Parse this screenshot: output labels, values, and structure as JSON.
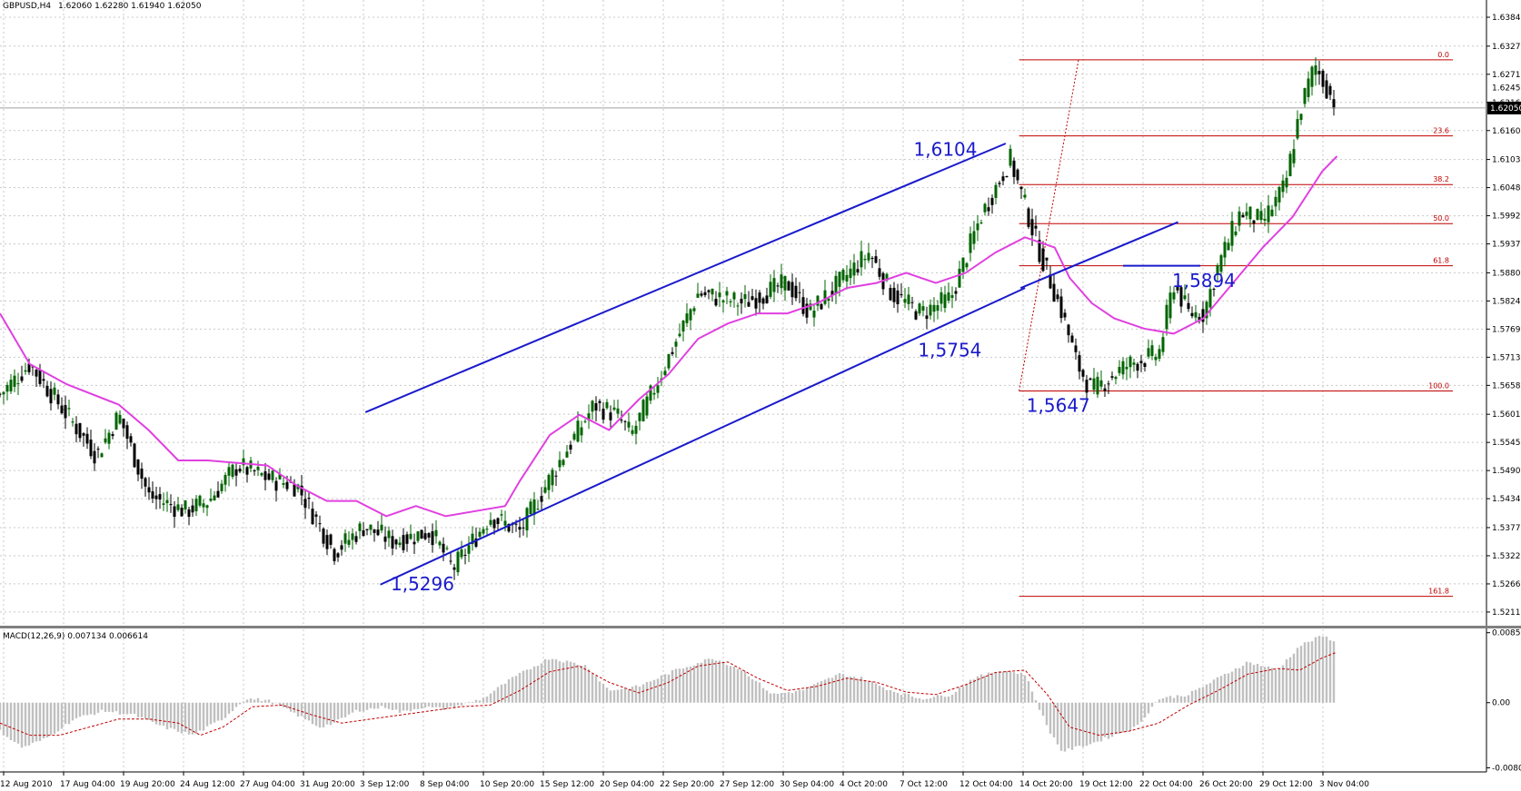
{
  "header": {
    "symbol": "GBPUSD,H4",
    "ohlc": "1.62060 1.62280 1.61940 1.62050"
  },
  "macd_header": "MACD(12,26,9) 0.007134 0.006614",
  "colors": {
    "up": "#006400",
    "down": "#000000",
    "ma": "#e040e0",
    "channel": "#1a1acc",
    "fib": "#c00000",
    "grid": "#c8c8c8",
    "hist": "#c0c0c0",
    "signal": "#c00000"
  },
  "chart_data": [
    {
      "type": "candlestick",
      "title": "GBPUSD,H4",
      "y_ticks": [
        "1.63840",
        "1.63270",
        "1.62715",
        "1.62160",
        "1.61605",
        "1.61035",
        "1.60480",
        "1.59925",
        "1.59370",
        "1.58800",
        "1.58245",
        "1.57690",
        "1.57135",
        "1.56580",
        "1.56010",
        "1.55455",
        "1.54900",
        "1.54345",
        "1.53775",
        "1.53220",
        "1.52665",
        "1.52110"
      ],
      "ylim": [
        1.5184,
        1.6418
      ],
      "x_ticks": [
        "12 Aug 2010",
        "17 Aug 04:00",
        "19 Aug 20:00",
        "24 Aug 12:00",
        "27 Aug 04:00",
        "31 Aug 20:00",
        "3 Sep 12:00",
        "8 Sep 04:00",
        "10 Sep 20:00",
        "15 Sep 12:00",
        "20 Sep 04:00",
        "22 Sep 20:00",
        "27 Sep 12:00",
        "30 Sep 04:00",
        "4 Oct 20:00",
        "7 Oct 12:00",
        "12 Oct 04:00",
        "14 Oct 20:00",
        "19 Oct 12:00",
        "22 Oct 04:00",
        "26 Oct 20:00",
        "29 Oct 12:00",
        "3 Nov 04:00"
      ],
      "current_price": "1.62050",
      "extra_tick": "1.62450",
      "price_path": [
        [
          0,
          1.564
        ],
        [
          0.02,
          1.57
        ],
        [
          0.045,
          1.56
        ],
        [
          0.065,
          1.552
        ],
        [
          0.08,
          1.56
        ],
        [
          0.1,
          1.544
        ],
        [
          0.125,
          1.541
        ],
        [
          0.14,
          1.543
        ],
        [
          0.16,
          1.55
        ],
        [
          0.18,
          1.5475
        ],
        [
          0.2,
          1.546
        ],
        [
          0.225,
          1.533
        ],
        [
          0.245,
          1.538
        ],
        [
          0.265,
          1.535
        ],
        [
          0.29,
          1.537
        ],
        [
          0.305,
          1.5296
        ],
        [
          0.33,
          1.54
        ],
        [
          0.35,
          1.537
        ],
        [
          0.375,
          1.55
        ],
        [
          0.4,
          1.562
        ],
        [
          0.415,
          1.56
        ],
        [
          0.425,
          1.556
        ],
        [
          0.44,
          1.565
        ],
        [
          0.47,
          1.584
        ],
        [
          0.5,
          1.582
        ],
        [
          0.53,
          1.586
        ],
        [
          0.545,
          1.58
        ],
        [
          0.565,
          1.586
        ],
        [
          0.585,
          1.592
        ],
        [
          0.6,
          1.584
        ],
        [
          0.62,
          1.58
        ],
        [
          0.64,
          1.583
        ],
        [
          0.66,
          1.599
        ],
        [
          0.68,
          1.6104
        ],
        [
          0.7,
          1.592
        ],
        [
          0.715,
          1.58
        ],
        [
          0.725,
          1.57
        ],
        [
          0.735,
          1.5647
        ],
        [
          0.75,
          1.568
        ],
        [
          0.76,
          1.57
        ],
        [
          0.78,
          1.572
        ],
        [
          0.79,
          1.586
        ],
        [
          0.8,
          1.58
        ],
        [
          0.81,
          1.58
        ],
        [
          0.82,
          1.5894
        ],
        [
          0.835,
          1.6
        ],
        [
          0.85,
          1.598
        ],
        [
          0.865,
          1.605
        ],
        [
          0.875,
          1.62
        ],
        [
          0.885,
          1.629
        ],
        [
          0.9,
          1.6205
        ]
      ],
      "ma_path": [
        [
          0,
          1.58
        ],
        [
          0.02,
          1.57
        ],
        [
          0.045,
          1.566
        ],
        [
          0.08,
          1.562
        ],
        [
          0.1,
          1.557
        ],
        [
          0.12,
          1.551
        ],
        [
          0.14,
          1.551
        ],
        [
          0.16,
          1.5505
        ],
        [
          0.18,
          1.55
        ],
        [
          0.2,
          1.546
        ],
        [
          0.22,
          1.543
        ],
        [
          0.24,
          1.543
        ],
        [
          0.26,
          1.54
        ],
        [
          0.28,
          1.542
        ],
        [
          0.3,
          1.54
        ],
        [
          0.32,
          1.541
        ],
        [
          0.34,
          1.542
        ],
        [
          0.35,
          1.547
        ],
        [
          0.37,
          1.556
        ],
        [
          0.39,
          1.56
        ],
        [
          0.41,
          1.557
        ],
        [
          0.43,
          1.563
        ],
        [
          0.45,
          1.568
        ],
        [
          0.47,
          1.575
        ],
        [
          0.49,
          1.578
        ],
        [
          0.51,
          1.58
        ],
        [
          0.53,
          1.58
        ],
        [
          0.55,
          1.582
        ],
        [
          0.57,
          1.585
        ],
        [
          0.59,
          1.586
        ],
        [
          0.61,
          1.588
        ],
        [
          0.63,
          1.586
        ],
        [
          0.65,
          1.588
        ],
        [
          0.67,
          1.592
        ],
        [
          0.69,
          1.595
        ],
        [
          0.71,
          1.593
        ],
        [
          0.72,
          1.587
        ],
        [
          0.735,
          1.582
        ],
        [
          0.75,
          1.579
        ],
        [
          0.77,
          1.577
        ],
        [
          0.79,
          1.576
        ],
        [
          0.81,
          1.579
        ],
        [
          0.83,
          1.586
        ],
        [
          0.85,
          1.593
        ],
        [
          0.87,
          1.599
        ],
        [
          0.89,
          1.608
        ],
        [
          0.9,
          1.611
        ]
      ],
      "channel": {
        "upper": [
          [
            0.246,
            1.5605
          ],
          [
            0.677,
            1.6135
          ]
        ],
        "lower": [
          [
            0.256,
            1.5265
          ],
          [
            0.69,
            1.585
          ]
        ],
        "breakout_line": [
          [
            0.687,
            1.585
          ],
          [
            0.793,
            1.598
          ]
        ]
      },
      "support_line": [
        [
          0.756,
          1.5894
        ],
        [
          0.808,
          1.5894
        ]
      ],
      "fibonacci": {
        "levels": [
          {
            "label": "0.0",
            "price": 1.63
          },
          {
            "label": "23.6",
            "price": 1.615
          },
          {
            "label": "38.2",
            "price": 1.6054
          },
          {
            "label": "50.0",
            "price": 1.5977
          },
          {
            "label": "61.8",
            "price": 1.5894
          },
          {
            "label": "100.0",
            "price": 1.5647
          },
          {
            "label": "161.8",
            "price": 1.5242
          }
        ],
        "start_frac": 0.686,
        "end_frac": 0.978,
        "trendline": [
          [
            0.686,
            1.5647
          ],
          [
            0.726,
            1.63
          ]
        ]
      },
      "annotations": [
        {
          "text": "1,6104",
          "price": 1.6111,
          "frac": 0.615
        },
        {
          "text": "1,5754",
          "price": 1.5715,
          "frac": 0.618
        },
        {
          "text": "1,5296",
          "price": 1.5254,
          "frac": 0.263
        },
        {
          "text": "1,5647",
          "price": 1.5606,
          "frac": 0.691
        },
        {
          "text": "1,5894",
          "price": 1.5852,
          "frac": 0.789
        }
      ]
    },
    {
      "type": "bar",
      "title": "MACD(12,26,9)",
      "y_ticks": [
        "0.008587",
        "0.00",
        "-0.00800"
      ],
      "ylim": [
        -0.0085,
        0.009
      ],
      "macd_path": [
        [
          0,
          -0.0035
        ],
        [
          0.015,
          -0.0055
        ],
        [
          0.03,
          -0.0045
        ],
        [
          0.05,
          -0.002
        ],
        [
          0.07,
          -0.001
        ],
        [
          0.09,
          -0.0015
        ],
        [
          0.11,
          -0.003
        ],
        [
          0.13,
          -0.004
        ],
        [
          0.15,
          -0.002
        ],
        [
          0.165,
          0.0005
        ],
        [
          0.18,
          0.0003
        ],
        [
          0.2,
          -0.0015
        ],
        [
          0.215,
          -0.003
        ],
        [
          0.225,
          -0.0025
        ],
        [
          0.24,
          -0.001
        ],
        [
          0.26,
          -0.0005
        ],
        [
          0.27,
          -0.0012
        ],
        [
          0.285,
          -0.0005
        ],
        [
          0.3,
          -0.0008
        ],
        [
          0.325,
          0.0005
        ],
        [
          0.345,
          0.003
        ],
        [
          0.37,
          0.0055
        ],
        [
          0.395,
          0.0045
        ],
        [
          0.41,
          0.0015
        ],
        [
          0.43,
          0.002
        ],
        [
          0.455,
          0.004
        ],
        [
          0.48,
          0.0055
        ],
        [
          0.5,
          0.004
        ],
        [
          0.52,
          0.001
        ],
        [
          0.54,
          0.0015
        ],
        [
          0.565,
          0.0035
        ],
        [
          0.58,
          0.003
        ],
        [
          0.6,
          0.0015
        ],
        [
          0.62,
          0.0005
        ],
        [
          0.64,
          0.001
        ],
        [
          0.655,
          0.003
        ],
        [
          0.675,
          0.004
        ],
        [
          0.69,
          0.0035
        ],
        [
          0.705,
          -0.003
        ],
        [
          0.715,
          -0.006
        ],
        [
          0.735,
          -0.005
        ],
        [
          0.75,
          -0.004
        ],
        [
          0.765,
          -0.003
        ],
        [
          0.78,
          0.0005
        ],
        [
          0.8,
          0.001
        ],
        [
          0.82,
          0.003
        ],
        [
          0.84,
          0.005
        ],
        [
          0.86,
          0.004
        ],
        [
          0.875,
          0.007
        ],
        [
          0.89,
          0.0082
        ],
        [
          0.9,
          0.0075
        ]
      ],
      "signal_path": [
        [
          0,
          -0.0025
        ],
        [
          0.02,
          -0.004
        ],
        [
          0.04,
          -0.004
        ],
        [
          0.06,
          -0.003
        ],
        [
          0.08,
          -0.002
        ],
        [
          0.1,
          -0.002
        ],
        [
          0.12,
          -0.0025
        ],
        [
          0.135,
          -0.004
        ],
        [
          0.15,
          -0.003
        ],
        [
          0.17,
          -0.0005
        ],
        [
          0.19,
          -0.0003
        ],
        [
          0.21,
          -0.0015
        ],
        [
          0.23,
          -0.0025
        ],
        [
          0.25,
          -0.002
        ],
        [
          0.27,
          -0.0015
        ],
        [
          0.29,
          -0.001
        ],
        [
          0.31,
          -0.0005
        ],
        [
          0.33,
          -0.0003
        ],
        [
          0.35,
          0.0015
        ],
        [
          0.37,
          0.0038
        ],
        [
          0.39,
          0.0045
        ],
        [
          0.41,
          0.0025
        ],
        [
          0.43,
          0.0012
        ],
        [
          0.45,
          0.0025
        ],
        [
          0.47,
          0.0045
        ],
        [
          0.49,
          0.005
        ],
        [
          0.51,
          0.003
        ],
        [
          0.53,
          0.0015
        ],
        [
          0.55,
          0.002
        ],
        [
          0.57,
          0.003
        ],
        [
          0.59,
          0.0025
        ],
        [
          0.61,
          0.0013
        ],
        [
          0.63,
          0.001
        ],
        [
          0.65,
          0.0022
        ],
        [
          0.67,
          0.0037
        ],
        [
          0.69,
          0.004
        ],
        [
          0.705,
          0.001
        ],
        [
          0.72,
          -0.003
        ],
        [
          0.74,
          -0.004
        ],
        [
          0.76,
          -0.0035
        ],
        [
          0.78,
          -0.0025
        ],
        [
          0.8,
          -0.0003
        ],
        [
          0.82,
          0.0015
        ],
        [
          0.84,
          0.0035
        ],
        [
          0.86,
          0.0042
        ],
        [
          0.875,
          0.004
        ],
        [
          0.89,
          0.0055
        ],
        [
          0.9,
          0.0062
        ]
      ]
    }
  ]
}
